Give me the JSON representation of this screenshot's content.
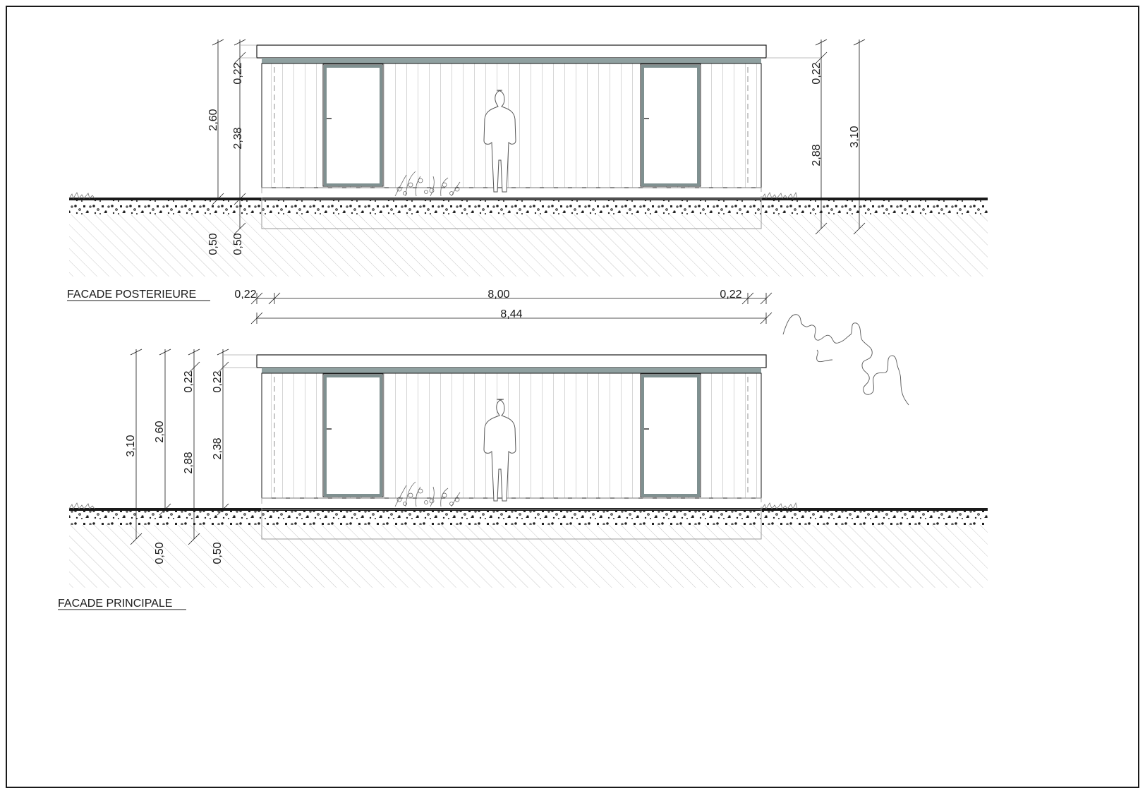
{
  "elevations": [
    {
      "id": "posterieure",
      "title": "FACADE POSTERIEURE",
      "dims_left": {
        "total": "2,60",
        "roof": "0,22",
        "wall": "2,38",
        "foundation_a": "0,50",
        "foundation_b": "0,50"
      },
      "dims_right": {
        "roof": "0,22",
        "wall": "2,88",
        "total": "3,10"
      }
    },
    {
      "id": "principale",
      "title": "FACADE PRINCIPALE",
      "dims_left": {
        "total_310": "3,10",
        "total_260": "2,60",
        "roof_a": "0,22",
        "wall_288": "2,88",
        "roof_b": "0,22",
        "wall_238": "2,38",
        "foundation_a": "0,50",
        "foundation_b": "0,50"
      }
    }
  ],
  "horizontal_dims": {
    "left_overhang": "0,22",
    "width": "8,00",
    "right_overhang": "0,22",
    "total": "8,44"
  },
  "colors": {
    "line": "#1a1a1a",
    "thin": "#8a8a8a",
    "roof_band": "#8fa0a0",
    "door_frame": "#7f9090"
  }
}
